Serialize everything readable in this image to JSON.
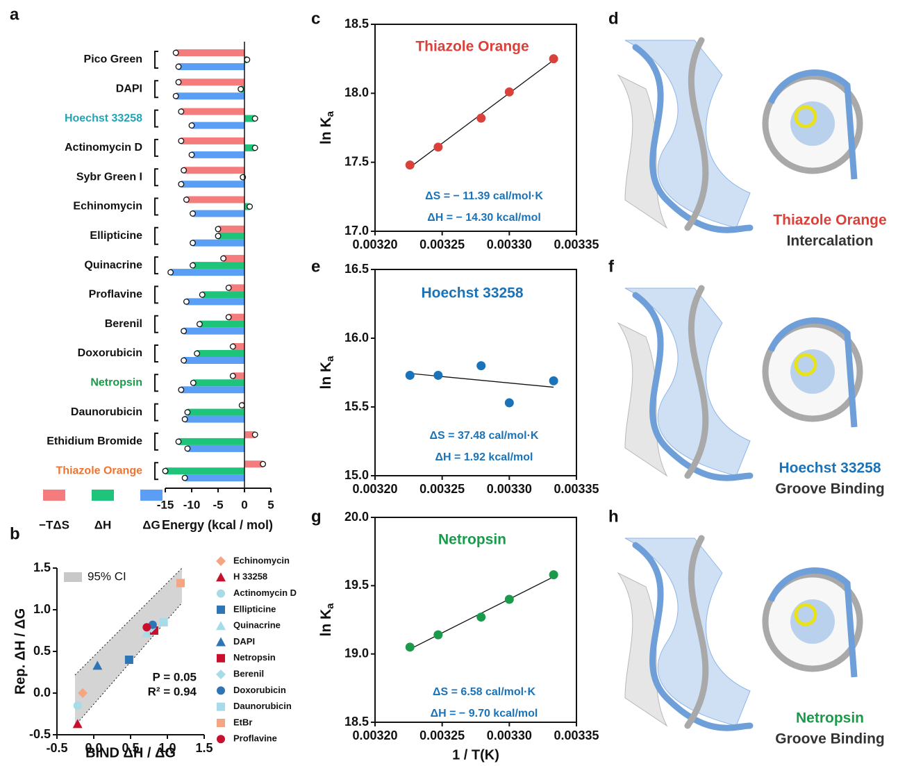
{
  "chart_data": [
    {
      "type": "hbar",
      "panel": "a",
      "categories": [
        "Pico Green",
        "DAPI",
        "Hoechst 33258",
        "Actinomycin D",
        "Sybr Green I",
        "Echinomycin",
        "Ellipticine",
        "Quinacrine",
        "Proflavine",
        "Berenil",
        "Doxorubicin",
        "Netropsin",
        "Daunorubicin",
        "Ethidium Bromide",
        "Thiazole Orange"
      ],
      "category_colors": [
        "#111111",
        "#111111",
        "#22a3b8",
        "#111111",
        "#111111",
        "#111111",
        "#111111",
        "#111111",
        "#111111",
        "#111111",
        "#111111",
        "#1a9a4a",
        "#111111",
        "#111111",
        "#f0742e"
      ],
      "series": [
        {
          "name": "−TΔS",
          "color": "#f47c7c",
          "values": [
            -13.0,
            -12.5,
            -12.0,
            -12.0,
            -11.5,
            -11.0,
            -5.0,
            -4.0,
            -3.0,
            -3.0,
            -2.2,
            -2.2,
            -0.5,
            2.0,
            3.5
          ]
        },
        {
          "name": "ΔH",
          "color": "#1dc47a",
          "values": [
            0.5,
            -0.7,
            2.0,
            2.0,
            -0.3,
            1.0,
            -5.0,
            -9.8,
            -8.0,
            -8.5,
            -9.0,
            -9.7,
            -10.8,
            -12.5,
            -15.0
          ]
        },
        {
          "name": "ΔG",
          "color": "#5a9ef5",
          "values": [
            -12.5,
            -13.0,
            -10.0,
            -10.0,
            -12.0,
            -9.8,
            -9.8,
            -14.0,
            -11.0,
            -11.5,
            -11.5,
            -12.0,
            -11.3,
            -10.8,
            -11.3
          ]
        }
      ],
      "xlim": [
        -15,
        5
      ],
      "xticks": [
        -15,
        -10,
        -5,
        0,
        5
      ],
      "xlabel": "Energy (kcal / mol)"
    },
    {
      "type": "scatter",
      "panel": "b",
      "frame": false,
      "xlabel": "BIND ΔH / ΔG",
      "ylabel": "Rep. ΔH / ΔG",
      "ci_label": "95% CI",
      "annotations": [
        "P = 0.05",
        "R² = 0.94"
      ],
      "xlim": [
        -0.5,
        1.5
      ],
      "xticks": [
        -0.5,
        {
          "value": 0,
          "label": "0.0"
        },
        0.5,
        {
          "value": 1,
          "label": "1.0"
        },
        1.5
      ],
      "ylim": [
        -0.5,
        1.5
      ],
      "yticks": [
        -0.5,
        {
          "value": 0,
          "label": "0.0"
        },
        0.5,
        {
          "value": 1,
          "label": "1.0"
        },
        1.5
      ],
      "series": [
        {
          "name": "Echinomycin",
          "color": "#f4a582",
          "marker": "diamond",
          "x": [
            -0.15
          ],
          "values": [
            0.0
          ]
        },
        {
          "name": "H 33258",
          "color": "#c8102e",
          "marker": "triangle",
          "x": [
            -0.22
          ],
          "values": [
            -0.37
          ]
        },
        {
          "name": "Actinomycin D",
          "color": "#a8dbe8",
          "marker": "circle",
          "x": [
            -0.22
          ],
          "values": [
            -0.15
          ]
        },
        {
          "name": "Ellipticine",
          "color": "#2e75b6",
          "marker": "square",
          "x": [
            0.48
          ],
          "values": [
            0.4
          ]
        },
        {
          "name": "Quinacrine",
          "color": "#a8dbe8",
          "marker": "triangle",
          "x": [
            0.72
          ],
          "values": [
            0.72
          ]
        },
        {
          "name": "DAPI",
          "color": "#2e75b6",
          "marker": "triangle",
          "x": [
            0.05
          ],
          "values": [
            0.33
          ]
        },
        {
          "name": "Netropsin",
          "color": "#c8102e",
          "marker": "square",
          "x": [
            0.82
          ],
          "values": [
            0.75
          ]
        },
        {
          "name": "Berenil",
          "color": "#a8dbe8",
          "marker": "diamond",
          "x": [
            0.78
          ],
          "values": [
            0.78
          ]
        },
        {
          "name": "Doxorubicin",
          "color": "#2e75b6",
          "marker": "circle",
          "x": [
            0.8
          ],
          "values": [
            0.82
          ]
        },
        {
          "name": "Daunorubicin",
          "color": "#a8dbe8",
          "marker": "square",
          "x": [
            0.95
          ],
          "values": [
            0.85
          ]
        },
        {
          "name": "EtBr",
          "color": "#f4a582",
          "marker": "square",
          "x": [
            1.18
          ],
          "values": [
            1.32
          ]
        },
        {
          "name": "Proflavine",
          "color": "#c8102e",
          "marker": "circle",
          "x": [
            0.72
          ],
          "values": [
            0.79
          ]
        }
      ]
    },
    {
      "type": "fit",
      "panel": "c",
      "frame": true,
      "title": "Thiazole Orange",
      "title_color": "#d9413a",
      "color": "#d9413a",
      "ylabel": "ln K",
      "ylabel_subscript": "a",
      "annotations": [
        "ΔS = − 11.39 cal/mol·K",
        "ΔH = − 14.30 kcal/mol"
      ],
      "x": [
        0.003226,
        0.003247,
        0.003279,
        0.0033,
        0.003333
      ],
      "values": [
        17.48,
        17.61,
        17.82,
        18.01,
        18.25
      ],
      "xlim": [
        0.0032,
        0.00335
      ],
      "xticks": [
        {
          "value": 0.0032,
          "label": "0.00320"
        },
        {
          "value": 0.00325,
          "label": "0.00325"
        },
        {
          "value": 0.0033,
          "label": "0.00330"
        },
        {
          "value": 0.00335,
          "label": "0.00335"
        }
      ],
      "ylim": [
        17,
        18.5
      ],
      "yticks": [
        {
          "value": 17,
          "label": "17.0"
        },
        17.5,
        {
          "value": 18,
          "label": "18.0"
        },
        18.5
      ]
    },
    {
      "type": "fit",
      "panel": "e",
      "frame": true,
      "title": "Hoechst 33258",
      "title_color": "#1a73b8",
      "color": "#1a73b8",
      "ylabel": "ln K",
      "ylabel_subscript": "a",
      "annotations": [
        "ΔS = 37.48 cal/mol·K",
        "ΔH = 1.92 kcal/mol"
      ],
      "x": [
        0.003226,
        0.003247,
        0.003279,
        0.0033,
        0.003333
      ],
      "values": [
        15.73,
        15.73,
        15.8,
        15.53,
        15.69
      ],
      "xlim": [
        0.0032,
        0.00335
      ],
      "xticks": [
        {
          "value": 0.0032,
          "label": "0.00320"
        },
        {
          "value": 0.00325,
          "label": "0.00325"
        },
        {
          "value": 0.0033,
          "label": "0.00330"
        },
        {
          "value": 0.00335,
          "label": "0.00335"
        }
      ],
      "ylim": [
        15,
        16.5
      ],
      "yticks": [
        {
          "value": 15,
          "label": "15.0"
        },
        15.5,
        {
          "value": 16,
          "label": "16.0"
        },
        16.5
      ]
    },
    {
      "type": "fit",
      "panel": "g",
      "frame": true,
      "title": "Netropsin",
      "title_color": "#1a9a4a",
      "color": "#1a9a4a",
      "ylabel": "ln K",
      "ylabel_subscript": "a",
      "xlabel": "1 / T(K)",
      "annotations": [
        "ΔS = 6.58 cal/mol·K",
        "ΔH = − 9.70 kcal/mol"
      ],
      "x": [
        0.003226,
        0.003247,
        0.003279,
        0.0033,
        0.003333
      ],
      "values": [
        19.05,
        19.14,
        19.27,
        19.4,
        19.58
      ],
      "xlim": [
        0.0032,
        0.00335
      ],
      "xticks": [
        {
          "value": 0.0032,
          "label": "0.00320"
        },
        {
          "value": 0.00325,
          "label": "0.00325"
        },
        {
          "value": 0.0033,
          "label": "0.00330"
        },
        {
          "value": 0.00335,
          "label": "0.00335"
        }
      ],
      "ylim": [
        18.5,
        20
      ],
      "yticks": [
        18.5,
        {
          "value": 19,
          "label": "19.0"
        },
        19.5,
        {
          "value": 20,
          "label": "20.0"
        }
      ]
    }
  ],
  "structures": [
    {
      "panel": "d",
      "ligand": "Thiazole Orange",
      "color": "#d9413a",
      "mode": "Intercalation"
    },
    {
      "panel": "f",
      "ligand": "Hoechst 33258",
      "color": "#1a73b8",
      "mode": "Groove Binding"
    },
    {
      "panel": "h",
      "ligand": "Netropsin",
      "color": "#1a9a4a",
      "mode": "Groove Binding"
    }
  ]
}
